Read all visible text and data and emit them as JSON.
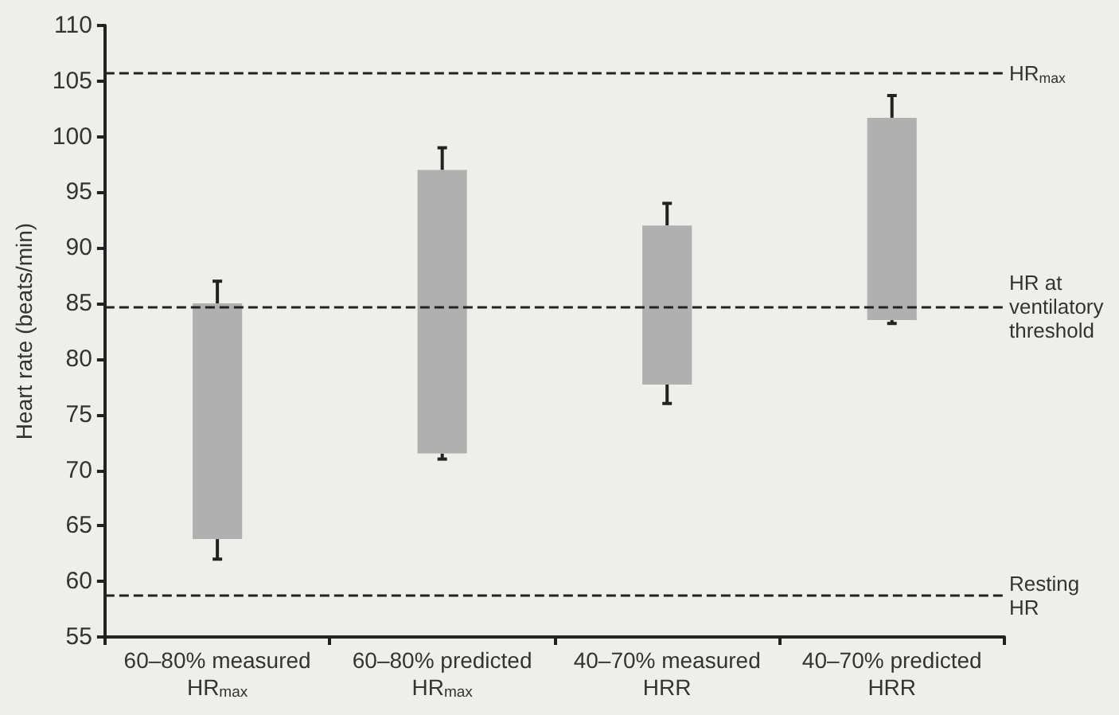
{
  "chart_data": {
    "type": "bar",
    "ylabel": "Heart rate (beats/min)",
    "categories": [
      "60–80% measured\nHR$_{max}$",
      "60–80% predicted\nHR$_{max}$",
      "40–70% measured\nHRR",
      "40–70% predicted\nHRR"
    ],
    "base": [
      63.8,
      71.5,
      77.7,
      83.5
    ],
    "values": [
      21.2,
      25.5,
      14.3,
      18.2
    ],
    "errors": [
      [
        62,
        87
      ],
      [
        71,
        99
      ],
      [
        76,
        94
      ],
      [
        83.2,
        103.7
      ]
    ],
    "color": "#b0b0b0",
    "ylim": [
      55,
      110
    ],
    "yticks": [
      55,
      60,
      65,
      70,
      75,
      80,
      85,
      90,
      95,
      100,
      105,
      110
    ],
    "grid": false,
    "ref_lines": [
      {
        "axis": "y",
        "value": 105.7,
        "label": "HR$_{max}$",
        "color": "#222222",
        "line_style": "dashed"
      },
      {
        "axis": "y",
        "value": 84.7,
        "label": "HR at\nventilatory\nthreshold",
        "color": "#222222",
        "line_style": "dashed"
      },
      {
        "axis": "y",
        "value": 58.7,
        "label": "Resting\nHR",
        "color": "#222222",
        "line_style": "dashed"
      }
    ]
  }
}
